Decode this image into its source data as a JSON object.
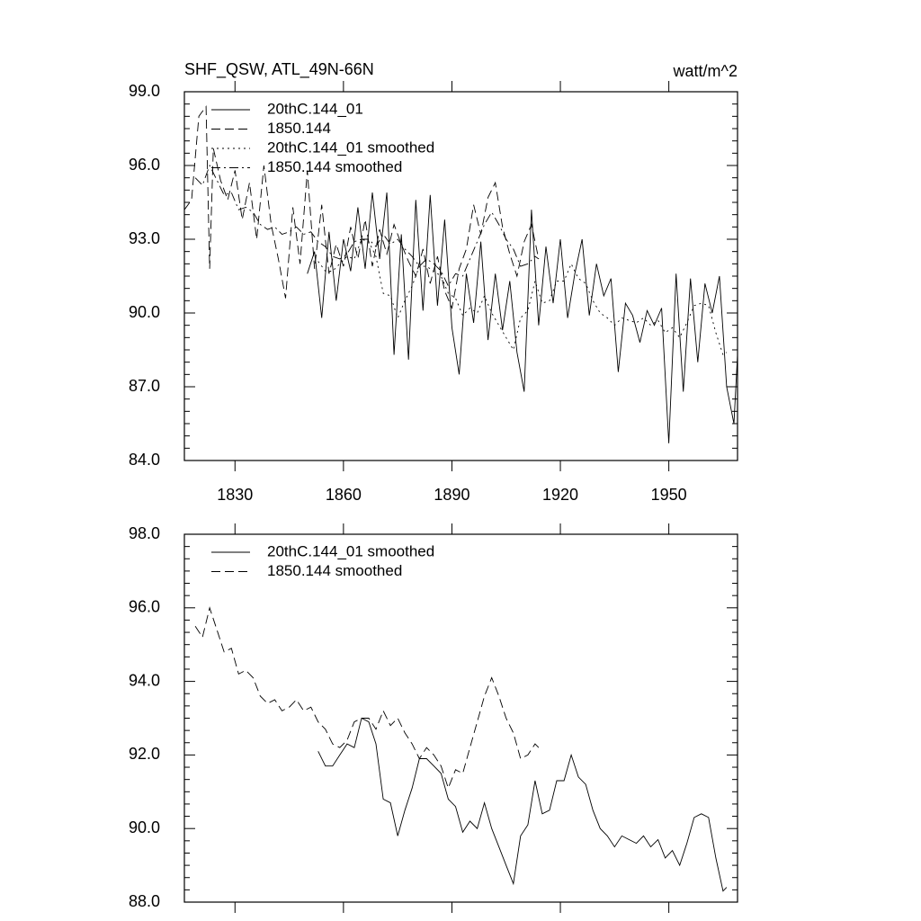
{
  "chart_data": [
    {
      "type": "line",
      "title": "SHF_QSW, ATL_49N-66N",
      "units": "watt/m^2",
      "xlim": [
        1816,
        1969
      ],
      "xticks": [
        1830,
        1860,
        1890,
        1920,
        1950
      ],
      "ylim": [
        84,
        99
      ],
      "yticks": [
        {
          "value": 84,
          "label": "84.0"
        },
        {
          "value": 87,
          "label": "87.0"
        },
        {
          "value": 90,
          "label": "90.0"
        },
        {
          "value": 93,
          "label": "93.0"
        },
        {
          "value": 96,
          "label": "96.0"
        },
        {
          "value": 99,
          "label": "99.0"
        }
      ],
      "legend": "upper left",
      "series": [
        {
          "name": "20thC.144_01",
          "color": "#000000",
          "dash": "solid",
          "x": [
            1850,
            1852,
            1854,
            1856,
            1858,
            1860,
            1862,
            1864,
            1866,
            1868,
            1870,
            1872,
            1874,
            1876,
            1878,
            1880,
            1882,
            1884,
            1886,
            1888,
            1890,
            1892,
            1894,
            1896,
            1898,
            1900,
            1902,
            1904,
            1906,
            1908,
            1910,
            1912,
            1914,
            1916,
            1918,
            1920,
            1922,
            1924,
            1926,
            1928,
            1930,
            1932,
            1934,
            1936,
            1938,
            1940,
            1942,
            1944,
            1946,
            1948,
            1950,
            1952,
            1954,
            1956,
            1958,
            1960,
            1962,
            1964,
            1966,
            1968,
            1969
          ],
          "values": [
            91.6,
            92.5,
            89.8,
            93.3,
            90.5,
            93.0,
            91.7,
            94.3,
            91.8,
            94.9,
            92.2,
            94.9,
            88.3,
            93.2,
            88.1,
            94.6,
            90.1,
            94.8,
            90.3,
            93.8,
            89.4,
            87.5,
            91.6,
            89.6,
            92.9,
            88.9,
            91.6,
            89.3,
            91.3,
            88.4,
            86.8,
            94.2,
            89.5,
            92.7,
            90.4,
            93.0,
            89.8,
            91.6,
            93.0,
            89.9,
            92.0,
            90.7,
            91.4,
            87.6,
            90.4,
            89.9,
            88.8,
            90.1,
            89.5,
            90.2,
            84.7,
            91.6,
            86.8,
            91.4,
            88.0,
            91.2,
            90.0,
            91.5,
            87.0,
            85.5,
            88.3
          ]
        },
        {
          "name": "1850.144",
          "color": "#000000",
          "dash": "dash",
          "x": [
            1816,
            1818,
            1820,
            1822,
            1823,
            1824,
            1826,
            1828,
            1830,
            1832,
            1834,
            1836,
            1838,
            1840,
            1842,
            1844,
            1846,
            1848,
            1850,
            1852,
            1854,
            1856,
            1858,
            1860,
            1862,
            1864,
            1866,
            1868,
            1870,
            1872,
            1874,
            1876,
            1878,
            1880,
            1882,
            1884,
            1886,
            1888,
            1890,
            1892,
            1894,
            1896,
            1898,
            1900,
            1902,
            1904,
            1906,
            1908,
            1910,
            1912,
            1914
          ],
          "values": [
            94.2,
            94.6,
            98.0,
            98.4,
            91.8,
            96.7,
            95.4,
            94.6,
            95.8,
            93.8,
            95.3,
            93.0,
            96.0,
            93.6,
            92.2,
            90.6,
            94.3,
            92.0,
            95.8,
            91.8,
            94.4,
            91.6,
            92.8,
            91.9,
            93.5,
            92.2,
            93.8,
            91.9,
            93.4,
            92.4,
            93.6,
            92.8,
            92.1,
            91.5,
            92.6,
            91.2,
            92.3,
            90.9,
            90.2,
            91.8,
            92.6,
            94.4,
            93.2,
            94.7,
            95.3,
            93.5,
            92.4,
            91.5,
            92.9,
            93.6,
            92.2
          ]
        },
        {
          "name": "20thC.144_01 smoothed",
          "color": "#000000",
          "dash": "dot",
          "x": [
            1853,
            1855,
            1857,
            1859,
            1861,
            1863,
            1865,
            1867,
            1869,
            1871,
            1873,
            1875,
            1877,
            1879,
            1881,
            1883,
            1885,
            1887,
            1889,
            1891,
            1893,
            1895,
            1897,
            1899,
            1901,
            1903,
            1905,
            1907,
            1909,
            1911,
            1913,
            1915,
            1917,
            1919,
            1921,
            1923,
            1925,
            1927,
            1929,
            1931,
            1933,
            1935,
            1937,
            1939,
            1941,
            1943,
            1945,
            1947,
            1949,
            1951,
            1953,
            1955,
            1957,
            1959,
            1961,
            1963,
            1965,
            1966
          ],
          "values": [
            92.1,
            91.7,
            91.7,
            92.0,
            92.3,
            92.2,
            93.0,
            92.9,
            92.3,
            90.8,
            90.7,
            89.8,
            90.5,
            91.1,
            91.9,
            91.9,
            91.7,
            91.5,
            90.8,
            90.6,
            89.9,
            90.2,
            90.0,
            90.7,
            90.0,
            89.5,
            89.0,
            88.5,
            89.8,
            90.1,
            91.3,
            90.4,
            90.5,
            91.3,
            91.3,
            92.0,
            91.4,
            91.2,
            90.5,
            90.0,
            89.8,
            89.5,
            89.8,
            89.7,
            89.6,
            89.8,
            89.5,
            89.7,
            89.2,
            89.4,
            89.0,
            89.6,
            90.3,
            90.4,
            90.3,
            89.2,
            88.3,
            88.4
          ]
        },
        {
          "name": "1850.144 smoothed",
          "color": "#000000",
          "dash": "dashdot",
          "x": [
            1819,
            1821,
            1823,
            1825,
            1827,
            1829,
            1831,
            1833,
            1835,
            1837,
            1839,
            1841,
            1843,
            1845,
            1847,
            1849,
            1851,
            1853,
            1855,
            1857,
            1859,
            1861,
            1863,
            1865,
            1867,
            1869,
            1871,
            1873,
            1875,
            1877,
            1879,
            1881,
            1883,
            1885,
            1887,
            1889,
            1891,
            1893,
            1895,
            1897,
            1899,
            1901,
            1903,
            1905,
            1907,
            1909,
            1911,
            1913,
            1914
          ],
          "values": [
            95.5,
            95.2,
            96.0,
            95.4,
            94.8,
            94.9,
            94.2,
            94.3,
            94.1,
            93.6,
            93.4,
            93.5,
            93.2,
            93.3,
            93.5,
            93.2,
            93.3,
            92.9,
            92.7,
            92.3,
            92.2,
            92.4,
            92.9,
            93.0,
            93.0,
            92.7,
            93.2,
            92.8,
            93.0,
            92.6,
            92.3,
            91.9,
            92.2,
            92.0,
            91.7,
            91.1,
            91.6,
            91.5,
            92.2,
            92.9,
            93.6,
            94.1,
            93.6,
            93.0,
            92.6,
            91.9,
            92.0,
            92.3,
            92.2
          ]
        }
      ]
    },
    {
      "type": "line",
      "xlim": [
        1816,
        1969
      ],
      "xticks": [
        1830,
        1860,
        1890,
        1920,
        1950
      ],
      "xtick_labels": false,
      "ylim": [
        88,
        98
      ],
      "yticks": [
        {
          "value": 88,
          "label": "88.0"
        },
        {
          "value": 90,
          "label": "90.0"
        },
        {
          "value": 92,
          "label": "92.0"
        },
        {
          "value": 94,
          "label": "94.0"
        },
        {
          "value": 96,
          "label": "96.0"
        },
        {
          "value": 98,
          "label": "98.0"
        }
      ],
      "legend": "upper left",
      "series": [
        {
          "name": "20thC.144_01 smoothed",
          "color": "#000000",
          "dash": "solid",
          "x": [
            1853,
            1855,
            1857,
            1859,
            1861,
            1863,
            1865,
            1867,
            1869,
            1871,
            1873,
            1875,
            1877,
            1879,
            1881,
            1883,
            1885,
            1887,
            1889,
            1891,
            1893,
            1895,
            1897,
            1899,
            1901,
            1903,
            1905,
            1907,
            1909,
            1911,
            1913,
            1915,
            1917,
            1919,
            1921,
            1923,
            1925,
            1927,
            1929,
            1931,
            1933,
            1935,
            1937,
            1939,
            1941,
            1943,
            1945,
            1947,
            1949,
            1951,
            1953,
            1955,
            1957,
            1959,
            1961,
            1963,
            1965,
            1966
          ],
          "values": [
            92.1,
            91.7,
            91.7,
            92.0,
            92.3,
            92.2,
            93.0,
            92.9,
            92.3,
            90.8,
            90.7,
            89.8,
            90.5,
            91.1,
            91.9,
            91.9,
            91.7,
            91.5,
            90.8,
            90.6,
            89.9,
            90.2,
            90.0,
            90.7,
            90.0,
            89.5,
            89.0,
            88.5,
            89.8,
            90.1,
            91.3,
            90.4,
            90.5,
            91.3,
            91.3,
            92.0,
            91.4,
            91.2,
            90.5,
            90.0,
            89.8,
            89.5,
            89.8,
            89.7,
            89.6,
            89.8,
            89.5,
            89.7,
            89.2,
            89.4,
            89.0,
            89.6,
            90.3,
            90.4,
            90.3,
            89.2,
            88.3,
            88.4
          ]
        },
        {
          "name": "1850.144 smoothed",
          "color": "#000000",
          "dash": "dash",
          "x": [
            1819,
            1821,
            1823,
            1825,
            1827,
            1829,
            1831,
            1833,
            1835,
            1837,
            1839,
            1841,
            1843,
            1845,
            1847,
            1849,
            1851,
            1853,
            1855,
            1857,
            1859,
            1861,
            1863,
            1865,
            1867,
            1869,
            1871,
            1873,
            1875,
            1877,
            1879,
            1881,
            1883,
            1885,
            1887,
            1889,
            1891,
            1893,
            1895,
            1897,
            1899,
            1901,
            1903,
            1905,
            1907,
            1909,
            1911,
            1913,
            1914
          ],
          "values": [
            95.5,
            95.2,
            96.0,
            95.4,
            94.8,
            94.9,
            94.2,
            94.3,
            94.1,
            93.6,
            93.4,
            93.5,
            93.2,
            93.3,
            93.5,
            93.2,
            93.3,
            92.9,
            92.7,
            92.3,
            92.2,
            92.4,
            92.9,
            93.0,
            93.0,
            92.7,
            93.2,
            92.8,
            93.0,
            92.6,
            92.3,
            91.9,
            92.2,
            92.0,
            91.7,
            91.1,
            91.6,
            91.5,
            92.2,
            92.9,
            93.6,
            94.1,
            93.6,
            93.0,
            92.6,
            91.9,
            92.0,
            92.3,
            92.2
          ]
        }
      ]
    }
  ]
}
